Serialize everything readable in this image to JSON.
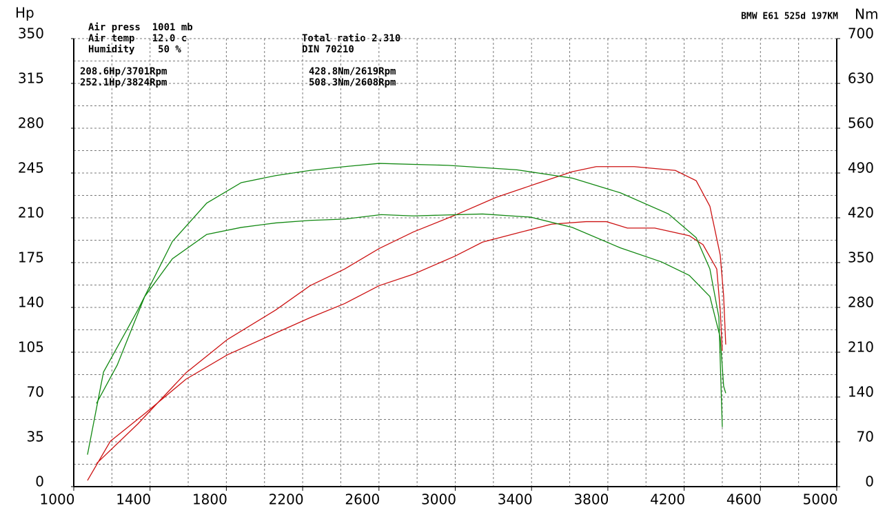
{
  "chart_data": {
    "type": "line",
    "y_label": "Hp",
    "y2_label": "Nm",
    "title": "BMW E61 525d 197KM",
    "annotations": [
      "Air press  1001 mb",
      "Air temp   12.0 c",
      "Humidity    50 %",
      "Total ratio 2.310",
      "DIN 70210"
    ],
    "peak_labels": [
      {
        "text": "208.6Hp/3701Rpm",
        "color": "#cc0000"
      },
      {
        "text": "252.1Hp/3824Rpm",
        "color": "#cc0000"
      },
      {
        "text": "428.8Nm/2619Rpm",
        "color": "#007700"
      },
      {
        "text": "508.3Nm/2608Rpm",
        "color": "#007700"
      }
    ],
    "xlim": [
      1000,
      5000
    ],
    "xticks": [
      1000,
      1400,
      1800,
      2200,
      2600,
      3000,
      3400,
      3800,
      4200,
      4600,
      5000
    ],
    "ylim": [
      0,
      350
    ],
    "yticks": [
      0,
      35,
      70,
      105,
      140,
      175,
      210,
      245,
      280,
      315,
      350
    ],
    "y2lim": [
      0,
      700
    ],
    "y2ticks": [
      0,
      70,
      140,
      210,
      280,
      350,
      420,
      490,
      560,
      630,
      700
    ],
    "grid": true,
    "series": [
      {
        "color": "#cc1111",
        "x": [
          1072,
          1192,
          1372,
          1589,
          1806,
          2059,
          2239,
          2420,
          2601,
          2781,
          2998,
          3143,
          3323,
          3504,
          3685,
          3793,
          3902,
          4046,
          4227,
          4299,
          4371,
          4389,
          4400
        ],
        "values": [
          4.8,
          35.5,
          57,
          84,
          103,
          120,
          132,
          143,
          157,
          166,
          180,
          191,
          198,
          205,
          207,
          207,
          202,
          202,
          196,
          189,
          170,
          138,
          106
        ]
      },
      {
        "color": "#cc1111",
        "x": [
          1119,
          1336,
          1589,
          1806,
          2059,
          2239,
          2420,
          2601,
          2781,
          2998,
          3215,
          3432,
          3613,
          3739,
          3938,
          4154,
          4263,
          4335,
          4389,
          4407,
          4418
        ],
        "values": [
          18,
          49,
          89,
          115,
          138,
          157,
          170,
          186,
          199,
          212,
          226,
          237,
          246,
          250,
          250,
          247,
          239,
          219,
          181,
          149,
          111
        ]
      },
      {
        "color": "#118811",
        "axis": "y2",
        "x": [
          1119,
          1228,
          1372,
          1517,
          1697,
          1878,
          2059,
          2239,
          2420,
          2612,
          2781,
          3143,
          3396,
          3613,
          3866,
          4082,
          4227,
          4335,
          4389,
          4407,
          4418
        ],
        "values": [
          130,
          190,
          297,
          356,
          394,
          405,
          412,
          416,
          418,
          425,
          423,
          426,
          421,
          405,
          373,
          351,
          330,
          297,
          233,
          157,
          146
        ]
      },
      {
        "color": "#118811",
        "axis": "y2",
        "x": [
          1072,
          1156,
          1336,
          1517,
          1697,
          1878,
          2059,
          2239,
          2420,
          2601,
          2962,
          3323,
          3613,
          3866,
          4118,
          4263,
          4335,
          4382,
          4400
        ],
        "values": [
          50,
          179,
          276,
          383,
          443,
          475,
          486,
          494,
          500,
          505,
          502,
          495,
          482,
          459,
          426,
          389,
          340,
          265,
          93
        ]
      }
    ]
  }
}
